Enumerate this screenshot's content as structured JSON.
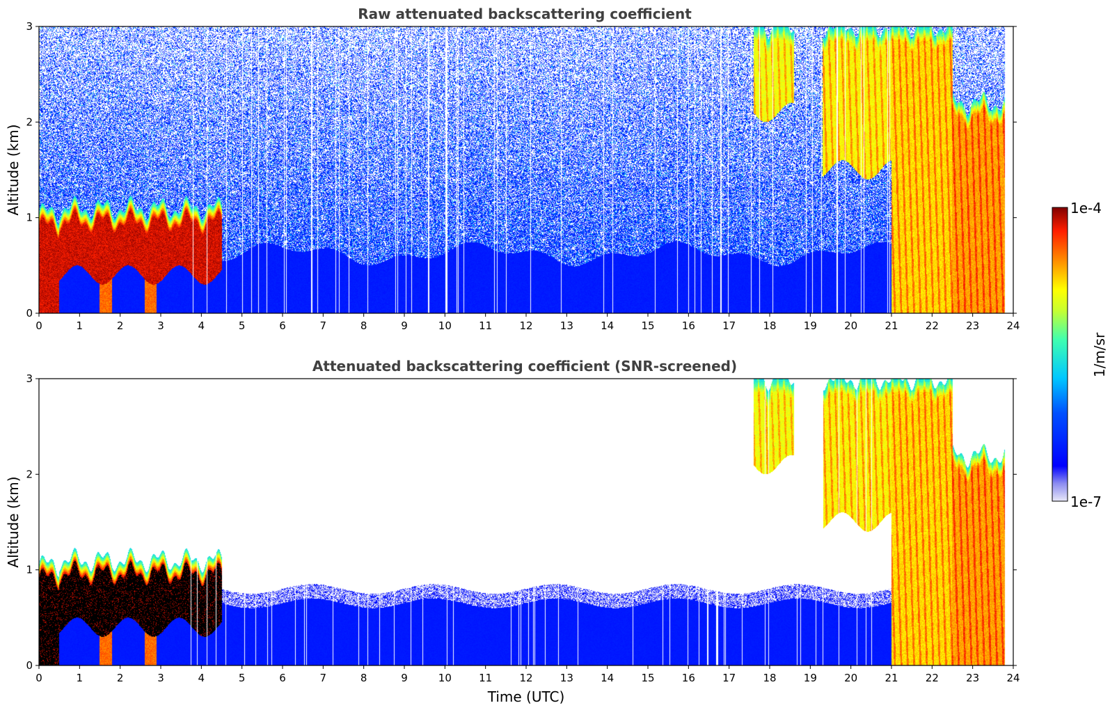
{
  "chart_data": [
    {
      "type": "heatmap",
      "title": "Raw attenuated backscattering coefficient",
      "xlabel": "",
      "ylabel": "Altitude (km)",
      "xlim": [
        0,
        24
      ],
      "ylim": [
        0,
        3
      ],
      "xticks": [
        0,
        1,
        2,
        3,
        4,
        5,
        6,
        7,
        8,
        9,
        10,
        11,
        12,
        13,
        14,
        15,
        16,
        17,
        18,
        19,
        20,
        21,
        22,
        23,
        24
      ],
      "yticks": [
        0,
        1,
        2,
        3
      ],
      "noise_background": true,
      "features": [
        {
          "kind": "cloud",
          "t_start": 0.0,
          "t_end": 0.5,
          "base_km": 0.0,
          "top_km": 1.05,
          "level": 0.95,
          "desc": "dense layer"
        },
        {
          "kind": "cloud",
          "t_start": 0.5,
          "t_end": 4.5,
          "base_km": 0.4,
          "top_km": 1.1,
          "level": 0.95
        },
        {
          "kind": "precip",
          "t_start": 1.5,
          "t_end": 1.8,
          "base_km": 0.0,
          "top_km": 0.9,
          "level": 0.85
        },
        {
          "kind": "precip",
          "t_start": 2.6,
          "t_end": 2.9,
          "base_km": 0.0,
          "top_km": 0.6,
          "level": 0.85
        },
        {
          "kind": "cloud",
          "t_start": 17.6,
          "t_end": 18.6,
          "base_km": 2.1,
          "top_km": 3.0,
          "level": 0.7
        },
        {
          "kind": "cloud",
          "t_start": 19.3,
          "t_end": 21.0,
          "base_km": 1.5,
          "top_km": 3.0,
          "level": 0.72
        },
        {
          "kind": "cloud",
          "t_start": 21.0,
          "t_end": 22.5,
          "base_km": 0.0,
          "top_km": 3.0,
          "level": 0.75
        },
        {
          "kind": "cloud",
          "t_start": 22.5,
          "t_end": 23.8,
          "base_km": 0.0,
          "top_km": 2.2,
          "level": 0.8
        }
      ]
    },
    {
      "type": "heatmap",
      "title": "Attenuated backscattering coefficient (SNR-screened)",
      "xlabel": "Time (UTC)",
      "ylabel": "Altitude (km)",
      "xlim": [
        0,
        24
      ],
      "ylim": [
        0,
        3
      ],
      "xticks": [
        0,
        1,
        2,
        3,
        4,
        5,
        6,
        7,
        8,
        9,
        10,
        11,
        12,
        13,
        14,
        15,
        16,
        17,
        18,
        19,
        20,
        21,
        22,
        23,
        24
      ],
      "yticks": [
        0,
        1,
        2,
        3
      ],
      "noise_background": false,
      "aerosol_layer_top_km": 0.8,
      "features": [
        {
          "kind": "cloud",
          "t_start": 0.0,
          "t_end": 0.5,
          "base_km": 0.0,
          "top_km": 1.05,
          "level": 1.0
        },
        {
          "kind": "cloud",
          "t_start": 0.5,
          "t_end": 4.5,
          "base_km": 0.4,
          "top_km": 1.1,
          "level": 1.0
        },
        {
          "kind": "precip",
          "t_start": 1.5,
          "t_end": 1.8,
          "base_km": 0.0,
          "top_km": 0.9,
          "level": 0.85
        },
        {
          "kind": "precip",
          "t_start": 2.6,
          "t_end": 2.9,
          "base_km": 0.0,
          "top_km": 0.6,
          "level": 0.85
        },
        {
          "kind": "cloud",
          "t_start": 17.6,
          "t_end": 18.6,
          "base_km": 2.1,
          "top_km": 3.0,
          "level": 0.7
        },
        {
          "kind": "cloud",
          "t_start": 19.3,
          "t_end": 21.0,
          "base_km": 1.5,
          "top_km": 3.0,
          "level": 0.72
        },
        {
          "kind": "cloud",
          "t_start": 21.0,
          "t_end": 22.5,
          "base_km": 0.0,
          "top_km": 3.0,
          "level": 0.75
        },
        {
          "kind": "cloud",
          "t_start": 22.5,
          "t_end": 23.8,
          "base_km": 0.0,
          "top_km": 2.2,
          "level": 0.8
        }
      ]
    }
  ],
  "colorbar": {
    "label": "1/m/sr",
    "max_label": "1e-4",
    "min_label": "1e-7",
    "range": [
      1e-07,
      0.0001
    ],
    "scale": "log",
    "colormap": "jet"
  }
}
